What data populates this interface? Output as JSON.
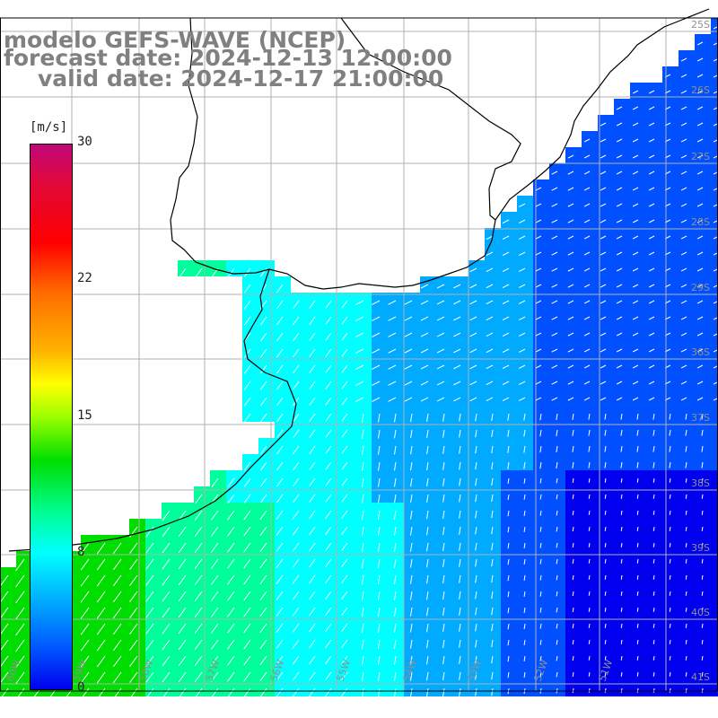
{
  "title": {
    "line1": "modelo GEFS-WAVE (NCEP)",
    "line2": "forecast date: 2024-12-13 12:00:00",
    "line3": "valid date: 2024-12-17 21:00:00"
  },
  "colorbar": {
    "unit": "[m/s]",
    "ticks": [
      "30",
      "22",
      "15",
      "8",
      "0"
    ],
    "min": 0,
    "max": 30,
    "colors": [
      "#0000ee",
      "#0050ff",
      "#00aaff",
      "#00ffff",
      "#00ff9a",
      "#00dd00",
      "#9cff00",
      "#ffff00",
      "#ffb400",
      "#ff6a00",
      "#ff0000",
      "#e0083a",
      "#c0087a"
    ]
  },
  "map": {
    "lat_labels": [
      "25S",
      "26S",
      "27S",
      "28S",
      "29S",
      "36S",
      "37S",
      "38S",
      "39S",
      "40S",
      "41S"
    ],
    "lon_labels": [
      "60W",
      "59W",
      "58W",
      "57W",
      "56W",
      "55W",
      "54W",
      "53W",
      "52W",
      "51W"
    ],
    "grid_color": "#b0b0b0",
    "coast_color": "#000000",
    "arrow_color": "#ffffff"
  }
}
